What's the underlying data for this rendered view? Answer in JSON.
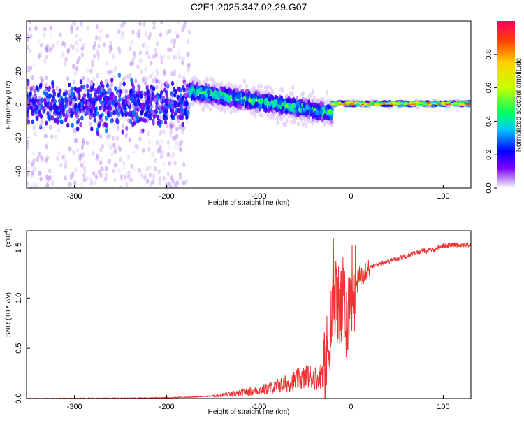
{
  "figure_title": "C2E1.2025.347.02.29.G07",
  "chart_data": [
    {
      "type": "heatmap",
      "name": "spectrogram",
      "xlabel": "Height of straight line (km)",
      "ylabel": "Frequency (Hz)",
      "xlim": [
        -352,
        130
      ],
      "ylim": [
        -50,
        50
      ],
      "xticks": [
        -300,
        -200,
        -100,
        0,
        100
      ],
      "yticks": [
        -40,
        -20,
        0,
        20,
        40
      ],
      "xtick_labels": [
        "-300",
        "-200",
        "-100",
        "0",
        "100"
      ],
      "ytick_labels": [
        "-40",
        "-20",
        "0",
        "20",
        "40"
      ],
      "colorbar": {
        "label": "Normalized spectral amplitude",
        "range": [
          0,
          1
        ],
        "ticks": [
          0.0,
          0.2,
          0.4,
          0.6,
          0.8
        ],
        "tick_labels": [
          "0.0",
          "0.2",
          "0.4",
          "0.6",
          "0.8"
        ],
        "colors": [
          "#ffffff",
          "#c8a8f0",
          "#8000ff",
          "#0000ff",
          "#00c8ff",
          "#00ff60",
          "#c8ff00",
          "#ffd000",
          "#ff4000",
          "#ff0066"
        ]
      },
      "regions": [
        {
          "x_range": [
            -352,
            -175
          ],
          "center_hz": 0,
          "spread_hz": 50,
          "peak_amplitude": 0.25,
          "description": "noise"
        },
        {
          "x_range": [
            -175,
            -20
          ],
          "center_start_hz": 8,
          "center_end_hz": -5,
          "spread_hz": 12,
          "peak_amplitude": 0.55
        },
        {
          "x_range": [
            -20,
            130
          ],
          "center_hz": 0.5,
          "spread_hz": 2,
          "peak_amplitude": 1.0
        }
      ]
    },
    {
      "type": "line",
      "name": "snr",
      "xlabel": "Height of straight line (km)",
      "ylabel": "SNR (10 * v/v)",
      "multiplier_label": "(x10",
      "multiplier_exp": "4",
      "multiplier_close": ")",
      "xlim": [
        -352,
        130
      ],
      "ylim": [
        0,
        1.67
      ],
      "xticks": [
        -300,
        -200,
        -100,
        0,
        100
      ],
      "yticks": [
        0.0,
        0.5,
        1.0,
        1.5
      ],
      "xtick_labels": [
        "-300",
        "-200",
        "-100",
        "0",
        "100"
      ],
      "ytick_labels": [
        "0.0",
        "0.5",
        "1.0",
        "1.5"
      ],
      "color": "#ee3333",
      "series": [
        {
          "name": "SNR",
          "x": [
            -352,
            -250,
            -200,
            -175,
            -150,
            -125,
            -100,
            -80,
            -60,
            -45,
            -35,
            -30,
            -25,
            -23,
            -20,
            -18,
            -15,
            -12,
            -10,
            -8,
            -5,
            -2,
            0,
            5,
            10,
            15,
            20,
            30,
            40,
            50,
            60,
            70,
            80,
            90,
            100,
            110,
            120,
            130
          ],
          "y": [
            0.0,
            0.003,
            0.008,
            0.015,
            0.025,
            0.05,
            0.08,
            0.12,
            0.18,
            0.22,
            0.2,
            0.3,
            0.45,
            0.7,
            0.9,
            1.05,
            0.95,
            0.85,
            0.9,
            1.0,
            0.8,
            0.95,
            1.1,
            1.12,
            1.22,
            1.28,
            1.3,
            1.34,
            1.37,
            1.39,
            1.42,
            1.45,
            1.47,
            1.48,
            1.52,
            1.53,
            1.53,
            1.53
          ]
        }
      ]
    }
  ]
}
